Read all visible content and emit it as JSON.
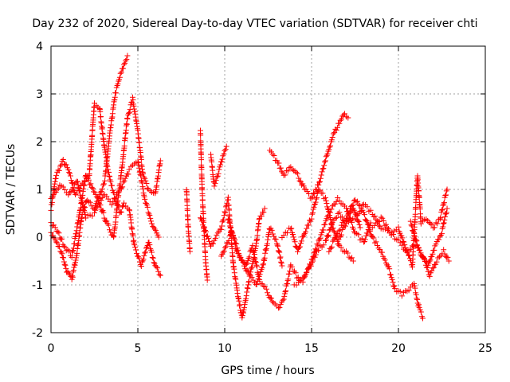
{
  "chart_data": {
    "type": "scatter",
    "title": "Day 232 of 2020, Sidereal Day-to-day VTEC variation (SDTVAR) for receiver chti",
    "xlabel": "GPS time / hours",
    "ylabel": "SDTVAR / TECUs",
    "xlim": [
      0,
      25
    ],
    "ylim": [
      -2,
      4
    ],
    "x_ticks": [
      0,
      5,
      10,
      15,
      20,
      25
    ],
    "y_ticks": [
      -2,
      -1,
      0,
      1,
      2,
      3,
      4
    ],
    "grid": true,
    "marker": "+",
    "series": [
      {
        "name": "SDTVAR",
        "color": "#ff0000",
        "tracks": [
          [
            [
              0,
              0.6
            ],
            [
              0.3,
              1.3
            ],
            [
              0.7,
              1.6
            ],
            [
              1.0,
              1.4
            ],
            [
              1.4,
              0.9
            ],
            [
              1.8,
              1.1
            ],
            [
              2.2,
              1.3
            ],
            [
              2.5,
              2.8
            ],
            [
              2.8,
              2.7
            ],
            [
              3.1,
              1.8
            ],
            [
              3.4,
              1.2
            ],
            [
              3.7,
              0.8
            ],
            [
              4.0,
              0.5
            ],
            [
              4.2,
              0.7
            ],
            [
              4.5,
              0.6
            ],
            [
              4.8,
              -0.2
            ],
            [
              5.2,
              -0.6
            ],
            [
              5.6,
              -0.1
            ],
            [
              6.0,
              -0.6
            ],
            [
              6.3,
              -0.8
            ]
          ],
          [
            [
              0,
              0.1
            ],
            [
              0.3,
              -0.1
            ],
            [
              0.6,
              -0.3
            ],
            [
              0.9,
              -0.7
            ],
            [
              1.2,
              -0.9
            ],
            [
              1.5,
              -0.3
            ],
            [
              1.8,
              0.5
            ],
            [
              2.1,
              0.8
            ],
            [
              2.5,
              0.6
            ],
            [
              2.8,
              0.9
            ],
            [
              3.1,
              1.2
            ],
            [
              3.4,
              2.2
            ],
            [
              3.7,
              3.0
            ],
            [
              4.0,
              3.4
            ],
            [
              4.3,
              3.7
            ],
            [
              4.4,
              3.8
            ]
          ],
          [
            [
              0,
              0.3
            ],
            [
              0.4,
              0.1
            ],
            [
              0.8,
              -0.2
            ],
            [
              1.2,
              -0.4
            ],
            [
              1.6,
              0.4
            ],
            [
              2.0,
              1.3
            ],
            [
              2.4,
              1.0
            ],
            [
              2.8,
              0.7
            ],
            [
              3.2,
              0.3
            ],
            [
              3.6,
              0.0
            ],
            [
              4.0,
              1.2
            ],
            [
              4.4,
              2.5
            ],
            [
              4.7,
              2.9
            ],
            [
              5.0,
              2.2
            ],
            [
              5.3,
              1.3
            ],
            [
              5.6,
              1.0
            ],
            [
              6.0,
              0.9
            ],
            [
              6.3,
              1.6
            ]
          ],
          [
            [
              0,
              0.8
            ],
            [
              0.5,
              1.1
            ],
            [
              1.0,
              0.9
            ],
            [
              1.5,
              1.2
            ],
            [
              2.0,
              0.4
            ],
            [
              2.5,
              0.5
            ],
            [
              3.0,
              0.9
            ],
            [
              3.5,
              0.7
            ],
            [
              4.0,
              1.0
            ],
            [
              4.5,
              1.4
            ],
            [
              5.0,
              1.6
            ],
            [
              5.4,
              0.8
            ],
            [
              5.8,
              0.3
            ],
            [
              6.2,
              0.0
            ]
          ],
          [
            [
              7.8,
              1.0
            ],
            [
              7.9,
              0.2
            ],
            [
              8.0,
              -0.3
            ]
          ],
          [
            [
              8.6,
              2.2
            ],
            [
              8.7,
              1.0
            ],
            [
              8.8,
              0.2
            ],
            [
              8.9,
              -0.5
            ],
            [
              9.0,
              -0.9
            ]
          ],
          [
            [
              9.2,
              1.7
            ],
            [
              9.4,
              1.1
            ],
            [
              9.6,
              1.3
            ],
            [
              9.9,
              1.7
            ],
            [
              10.1,
              1.9
            ]
          ],
          [
            [
              8.6,
              0.4
            ],
            [
              9.2,
              -0.2
            ],
            [
              9.8,
              0.2
            ],
            [
              10.2,
              0.8
            ],
            [
              10.5,
              -0.6
            ],
            [
              10.8,
              -1.3
            ],
            [
              11.0,
              -1.7
            ],
            [
              11.4,
              -0.9
            ],
            [
              11.8,
              -0.2
            ],
            [
              12.0,
              0.4
            ],
            [
              12.3,
              0.6
            ]
          ],
          [
            [
              9.8,
              -0.4
            ],
            [
              10.4,
              0.1
            ],
            [
              10.9,
              -0.4
            ],
            [
              11.4,
              -0.8
            ],
            [
              11.8,
              -1.0
            ],
            [
              12.2,
              -0.6
            ],
            [
              12.6,
              0.2
            ],
            [
              13.0,
              -0.1
            ],
            [
              13.3,
              -0.6
            ]
          ],
          [
            [
              10.2,
              0.4
            ],
            [
              10.7,
              -0.3
            ],
            [
              11.2,
              -0.6
            ],
            [
              11.6,
              -0.2
            ],
            [
              12.0,
              -0.9
            ],
            [
              12.4,
              -1.1
            ],
            [
              12.8,
              -1.4
            ],
            [
              13.1,
              -1.5
            ],
            [
              13.4,
              -1.3
            ],
            [
              13.8,
              -0.6
            ],
            [
              14.3,
              -0.9
            ],
            [
              14.8,
              -0.7
            ],
            [
              15.3,
              -0.3
            ],
            [
              15.8,
              -0.1
            ],
            [
              16.2,
              0.3
            ],
            [
              16.6,
              0.5
            ],
            [
              17.0,
              0.3
            ],
            [
              17.4,
              0.6
            ],
            [
              17.8,
              0.2
            ]
          ],
          [
            [
              12.6,
              1.8
            ],
            [
              13.0,
              1.6
            ],
            [
              13.4,
              1.3
            ],
            [
              13.8,
              1.5
            ],
            [
              14.2,
              1.3
            ],
            [
              14.6,
              1.0
            ],
            [
              15.0,
              0.8
            ],
            [
              15.4,
              1.1
            ],
            [
              15.8,
              1.6
            ],
            [
              16.2,
              2.1
            ],
            [
              16.6,
              2.4
            ],
            [
              16.9,
              2.6
            ],
            [
              17.1,
              2.5
            ]
          ],
          [
            [
              13.3,
              0.0
            ],
            [
              13.8,
              0.2
            ],
            [
              14.2,
              -0.3
            ],
            [
              14.6,
              0.1
            ],
            [
              15.0,
              0.4
            ],
            [
              15.4,
              1.0
            ],
            [
              15.8,
              0.8
            ],
            [
              16.2,
              0.2
            ],
            [
              16.6,
              -0.2
            ],
            [
              17.0,
              -0.3
            ],
            [
              17.4,
              -0.5
            ]
          ],
          [
            [
              14.0,
              -1.0
            ],
            [
              14.5,
              -0.9
            ],
            [
              15.0,
              -0.5
            ],
            [
              15.5,
              0.0
            ],
            [
              16.0,
              0.5
            ],
            [
              16.5,
              0.8
            ],
            [
              17.0,
              0.6
            ],
            [
              17.5,
              0.1
            ],
            [
              18.0,
              -0.1
            ],
            [
              18.4,
              0.3
            ]
          ],
          [
            [
              16.0,
              -0.3
            ],
            [
              16.5,
              0.1
            ],
            [
              17.0,
              0.4
            ],
            [
              17.5,
              0.8
            ],
            [
              18.0,
              0.5
            ],
            [
              18.5,
              0.0
            ],
            [
              19.0,
              -0.3
            ],
            [
              19.4,
              -0.6
            ],
            [
              19.8,
              -1.1
            ],
            [
              20.2,
              -1.2
            ],
            [
              20.6,
              -1.1
            ],
            [
              20.9,
              -1.0
            ],
            [
              21.2,
              -1.5
            ],
            [
              21.4,
              -1.7
            ]
          ],
          [
            [
              16.5,
              -0.1
            ],
            [
              17.0,
              0.3
            ],
            [
              17.5,
              0.4
            ],
            [
              18.0,
              0.7
            ],
            [
              18.5,
              0.5
            ],
            [
              19.0,
              0.2
            ],
            [
              19.5,
              0.1
            ],
            [
              20.0,
              0.2
            ],
            [
              20.4,
              -0.2
            ],
            [
              20.8,
              -0.6
            ],
            [
              21.1,
              1.3
            ],
            [
              21.3,
              0.3
            ],
            [
              21.6,
              0.4
            ],
            [
              22.0,
              0.2
            ],
            [
              22.4,
              0.4
            ],
            [
              22.8,
              1.0
            ]
          ],
          [
            [
              18.5,
              0.2
            ],
            [
              19.0,
              0.4
            ],
            [
              19.5,
              0.1
            ],
            [
              20.0,
              -0.1
            ],
            [
              20.5,
              -0.3
            ],
            [
              21.0,
              -0.1
            ],
            [
              21.4,
              -0.4
            ],
            [
              21.8,
              -0.8
            ],
            [
              22.2,
              -0.5
            ],
            [
              22.6,
              -0.3
            ],
            [
              22.9,
              -0.5
            ]
          ],
          [
            [
              20.7,
              0.3
            ],
            [
              21.2,
              -0.3
            ],
            [
              21.7,
              -0.6
            ],
            [
              22.1,
              -0.2
            ],
            [
              22.5,
              0.1
            ],
            [
              22.8,
              0.6
            ]
          ]
        ]
      }
    ]
  }
}
